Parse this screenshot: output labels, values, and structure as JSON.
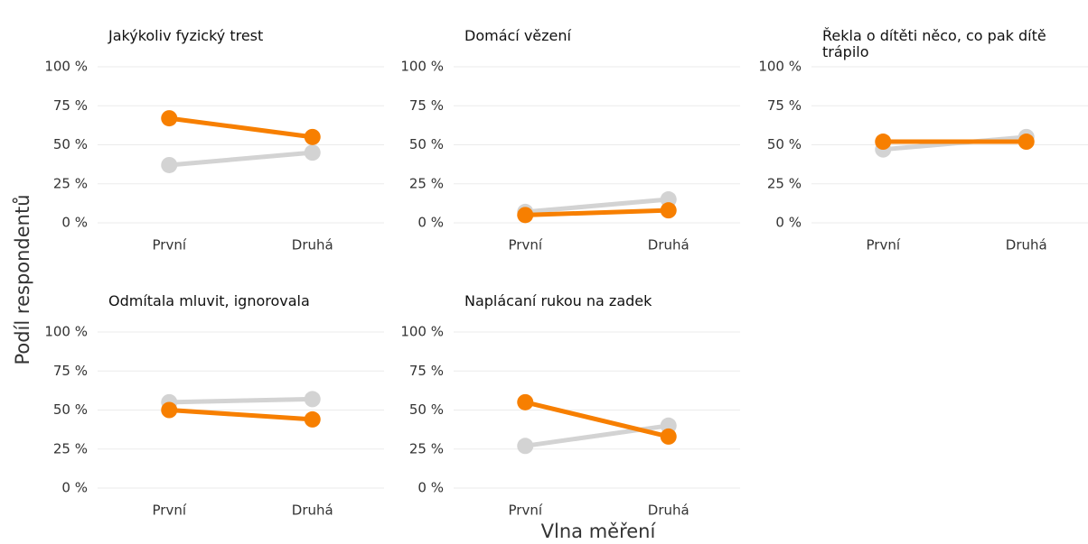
{
  "xlabel": "Vlna měření",
  "ylabel": "Podíl respondentů",
  "chart_data": [
    {
      "type": "line",
      "title": "Jakýkoliv fyzický trest",
      "categories": [
        "První",
        "Druhá"
      ],
      "series": [
        {
          "color": "#d3d3d3",
          "values": [
            37,
            45
          ]
        },
        {
          "color": "#f77f00",
          "values": [
            67,
            55
          ]
        }
      ],
      "ylim": [
        0,
        100
      ],
      "yticks": [
        {
          "value": 0,
          "label": "0 %"
        },
        {
          "value": 25,
          "label": "25 %"
        },
        {
          "value": 50,
          "label": "50 %"
        },
        {
          "value": 75,
          "label": "75 %"
        },
        {
          "value": 100,
          "label": "100 %"
        }
      ],
      "grid": true
    },
    {
      "type": "line",
      "title": "Domácí vězení",
      "categories": [
        "První",
        "Druhá"
      ],
      "series": [
        {
          "color": "#d3d3d3",
          "values": [
            7,
            15
          ]
        },
        {
          "color": "#f77f00",
          "values": [
            5,
            8
          ]
        }
      ],
      "ylim": [
        0,
        100
      ],
      "yticks": [
        {
          "value": 0,
          "label": "0 %"
        },
        {
          "value": 25,
          "label": "25 %"
        },
        {
          "value": 50,
          "label": "50 %"
        },
        {
          "value": 75,
          "label": "75 %"
        },
        {
          "value": 100,
          "label": "100 %"
        }
      ],
      "grid": true
    },
    {
      "type": "line",
      "title": "Řekla o dítěti něco, co pak dítě trápilo",
      "categories": [
        "První",
        "Druhá"
      ],
      "series": [
        {
          "color": "#d3d3d3",
          "values": [
            47,
            55
          ]
        },
        {
          "color": "#f77f00",
          "values": [
            52,
            52
          ]
        }
      ],
      "ylim": [
        0,
        100
      ],
      "yticks": [
        {
          "value": 0,
          "label": "0 %"
        },
        {
          "value": 25,
          "label": "25 %"
        },
        {
          "value": 50,
          "label": "50 %"
        },
        {
          "value": 75,
          "label": "75 %"
        },
        {
          "value": 100,
          "label": "100 %"
        }
      ],
      "grid": true
    },
    {
      "type": "line",
      "title": "Odmítala mluvit, ignorovala",
      "categories": [
        "První",
        "Druhá"
      ],
      "series": [
        {
          "color": "#d3d3d3",
          "values": [
            55,
            57
          ]
        },
        {
          "color": "#f77f00",
          "values": [
            50,
            44
          ]
        }
      ],
      "ylim": [
        0,
        100
      ],
      "yticks": [
        {
          "value": 0,
          "label": "0 %"
        },
        {
          "value": 25,
          "label": "25 %"
        },
        {
          "value": 50,
          "label": "50 %"
        },
        {
          "value": 75,
          "label": "75 %"
        },
        {
          "value": 100,
          "label": "100 %"
        }
      ],
      "grid": true
    },
    {
      "type": "line",
      "title": "Naplácaní rukou na zadek",
      "categories": [
        "První",
        "Druhá"
      ],
      "series": [
        {
          "color": "#d3d3d3",
          "values": [
            27,
            40
          ]
        },
        {
          "color": "#f77f00",
          "values": [
            55,
            33
          ]
        }
      ],
      "ylim": [
        0,
        100
      ],
      "yticks": [
        {
          "value": 0,
          "label": "0 %"
        },
        {
          "value": 25,
          "label": "25 %"
        },
        {
          "value": 50,
          "label": "50 %"
        },
        {
          "value": 75,
          "label": "75 %"
        },
        {
          "value": 100,
          "label": "100 %"
        }
      ],
      "grid": true
    }
  ]
}
